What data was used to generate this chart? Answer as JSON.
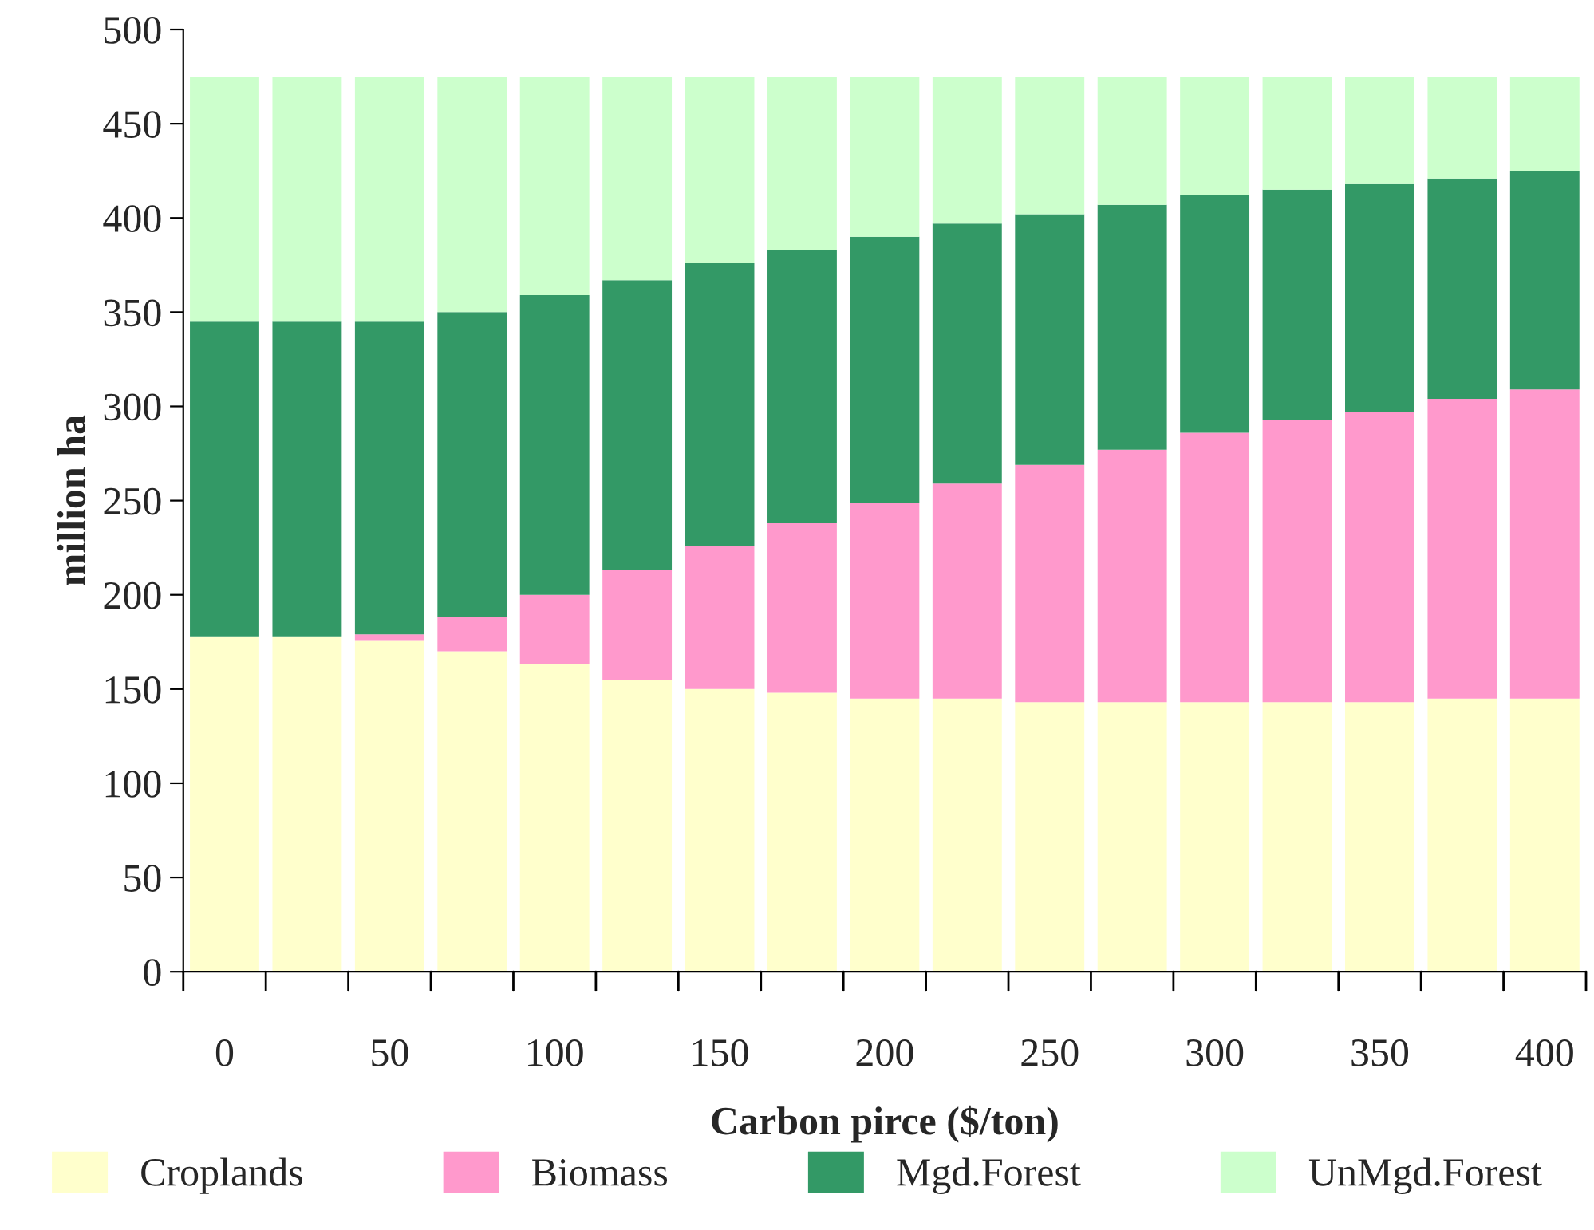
{
  "chart_data": {
    "type": "bar",
    "stacked": true,
    "xlabel": "Carbon pirce ($/ton)",
    "ylabel": "million ha",
    "categories": [
      "0",
      null,
      "50",
      null,
      "100",
      null,
      "150",
      null,
      "200",
      null,
      "250",
      null,
      "300",
      null,
      "350",
      null,
      "400"
    ],
    "series": [
      {
        "name": "Croplands",
        "color": "#ffffcc",
        "values": [
          178,
          178,
          176,
          170,
          163,
          155,
          150,
          148,
          145,
          145,
          143,
          143,
          143,
          143,
          143,
          145,
          145
        ]
      },
      {
        "name": "Biomass",
        "color": "#ff99cc",
        "values": [
          0,
          0,
          3,
          18,
          37,
          58,
          76,
          90,
          104,
          114,
          126,
          134,
          143,
          150,
          154,
          159,
          164
        ]
      },
      {
        "name": "Mgd.Forest",
        "color": "#339966",
        "values": [
          167,
          167,
          166,
          162,
          159,
          154,
          150,
          145,
          141,
          138,
          133,
          130,
          126,
          122,
          121,
          117,
          116
        ]
      },
      {
        "name": "UnMgd.Forest",
        "color": "#ccffcc",
        "values": [
          130,
          130,
          130,
          125,
          116,
          108,
          99,
          92,
          85,
          78,
          73,
          68,
          63,
          60,
          57,
          54,
          50
        ]
      }
    ],
    "ylim": [
      0,
      500
    ],
    "yticks": [
      0,
      50,
      100,
      150,
      200,
      250,
      300,
      350,
      400,
      450,
      500
    ],
    "grid": false,
    "legend": "bottom"
  }
}
